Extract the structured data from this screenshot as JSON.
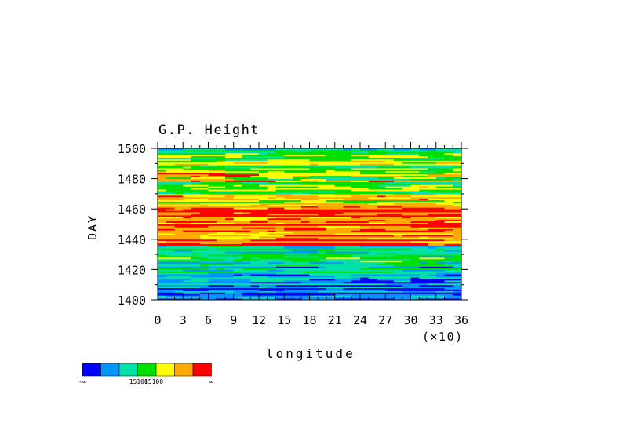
{
  "chart_data": {
    "type": "heatmap",
    "title": "G.P. Height",
    "xlabel": "longitude",
    "x_multiplier_label": "(×10)",
    "ylabel": "DAY",
    "x_ticks": [
      "0",
      "3",
      "6",
      "9",
      "12",
      "15",
      "18",
      "21",
      "24",
      "27",
      "30",
      "33",
      "36"
    ],
    "y_ticks": [
      "1400",
      "1420",
      "1440",
      "1460",
      "1480",
      "1500"
    ],
    "xlim": [
      0,
      36
    ],
    "ylim": [
      1400,
      1500
    ],
    "colorbar": {
      "colors": [
        "#0000ff",
        "#0096ff",
        "#00e0a8",
        "#00e000",
        "#ffff00",
        "#ffaa00",
        "#ff0000"
      ],
      "labels": [
        "-∞",
        "15100",
        "15100",
        "∞"
      ]
    },
    "pattern_description_rows": [
      {
        "day_range": [
          1400,
          1415
        ],
        "dominant": "blue/cyan"
      },
      {
        "day_range": [
          1415,
          1435
        ],
        "dominant": "cyan/green"
      },
      {
        "day_range": [
          1435,
          1465
        ],
        "dominant": "red/orange"
      },
      {
        "day_range": [
          1465,
          1485
        ],
        "dominant": "green/yellow"
      },
      {
        "day_range": [
          1485,
          1500
        ],
        "dominant": "green/cyan"
      }
    ]
  }
}
